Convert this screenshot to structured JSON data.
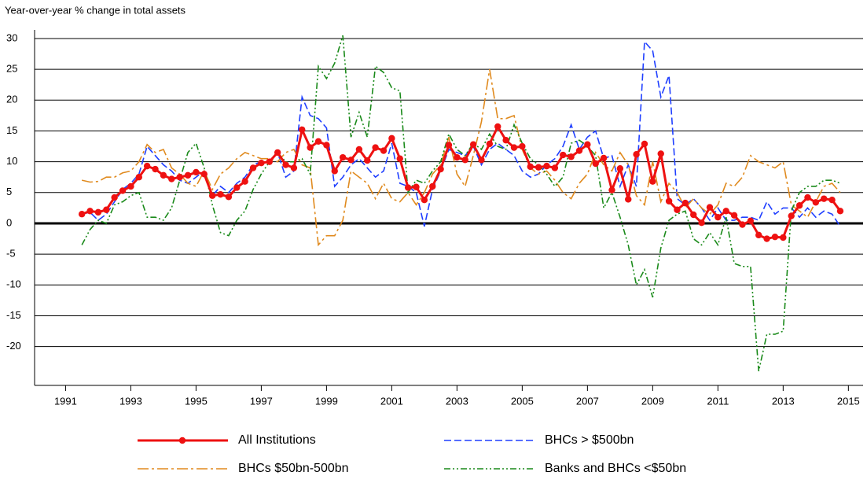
{
  "chart_data": {
    "type": "line",
    "title": "Year-over-year % change in total assets",
    "x": [
      1991.5,
      1991.75,
      1992,
      1992.25,
      1992.5,
      1992.75,
      1993,
      1993.25,
      1993.5,
      1993.75,
      1994,
      1994.25,
      1994.5,
      1994.75,
      1995,
      1995.25,
      1995.5,
      1995.75,
      1996,
      1996.25,
      1996.5,
      1996.75,
      1997,
      1997.25,
      1997.5,
      1997.75,
      1998,
      1998.25,
      1998.5,
      1998.75,
      1999,
      1999.25,
      1999.5,
      1999.75,
      2000,
      2000.25,
      2000.5,
      2000.75,
      2001,
      2001.25,
      2001.5,
      2001.75,
      2002,
      2002.25,
      2002.5,
      2002.75,
      2003,
      2003.25,
      2003.5,
      2003.75,
      2004,
      2004.25,
      2004.5,
      2004.75,
      2005,
      2005.25,
      2005.5,
      2005.75,
      2006,
      2006.25,
      2006.5,
      2006.75,
      2007,
      2007.25,
      2007.5,
      2007.75,
      2008,
      2008.25,
      2008.5,
      2008.75,
      2009,
      2009.25,
      2009.5,
      2009.75,
      2010,
      2010.25,
      2010.5,
      2010.75,
      2011,
      2011.25,
      2011.5,
      2011.75,
      2012,
      2012.25,
      2012.5,
      2012.75,
      2013,
      2013.25,
      2013.5,
      2013.75,
      2014,
      2014.25,
      2014.5,
      2014.75
    ],
    "series": [
      {
        "name": "All Institutions",
        "color": "#ee1111",
        "style": "solid",
        "marker": true,
        "values": [
          1.5,
          2.0,
          1.8,
          2.2,
          4.2,
          5.3,
          6.0,
          7.5,
          9.3,
          8.8,
          7.8,
          7.2,
          7.5,
          7.8,
          8.3,
          8.0,
          4.5,
          4.7,
          4.3,
          5.8,
          6.8,
          9.0,
          9.8,
          10.0,
          11.5,
          9.5,
          9.0,
          15.2,
          12.3,
          13.3,
          12.7,
          8.5,
          10.7,
          10.3,
          12.0,
          10.2,
          12.3,
          11.8,
          13.8,
          10.5,
          5.8,
          5.9,
          3.8,
          6.0,
          8.8,
          12.7,
          10.7,
          10.3,
          12.8,
          10.3,
          12.9,
          15.7,
          13.5,
          12.3,
          12.5,
          9.2,
          9.1,
          9.3,
          9.0,
          11.1,
          10.8,
          11.8,
          12.8,
          9.7,
          10.6,
          5.4,
          8.9,
          3.9,
          11.2,
          12.9,
          6.8,
          11.3,
          3.6,
          2.2,
          3.3,
          1.4,
          0.1,
          2.6,
          1.0,
          2.0,
          1.3,
          -0.2,
          0.4,
          -1.9,
          -2.5,
          -2.2,
          -2.3,
          1.2,
          2.9,
          4.2,
          3.4,
          4.0,
          3.8,
          2.0
        ]
      },
      {
        "name": "BHCs > $500bn",
        "color": "#1f3fff",
        "style": "dashed",
        "marker": false,
        "values": [
          1.5,
          1.8,
          0.5,
          1.5,
          3.5,
          5.5,
          6.5,
          8.0,
          12.5,
          11.0,
          9.5,
          8.5,
          7.0,
          6.5,
          7.5,
          8.5,
          4.5,
          6.0,
          5.0,
          6.5,
          7.5,
          9.5,
          10.0,
          10.0,
          11.5,
          7.5,
          8.5,
          20.5,
          17.5,
          17.0,
          15.5,
          6.0,
          7.5,
          9.5,
          10.5,
          9.0,
          7.5,
          8.5,
          13.0,
          6.5,
          6.0,
          5.0,
          -0.5,
          5.5,
          8.5,
          12.0,
          11.5,
          11.0,
          12.5,
          9.5,
          12.0,
          13.0,
          12.0,
          11.0,
          8.5,
          7.5,
          8.0,
          9.5,
          10.5,
          12.5,
          16.0,
          12.0,
          14.0,
          15.0,
          10.5,
          11.0,
          6.0,
          9.5,
          6.0,
          29.5,
          28.0,
          20.5,
          24.0,
          4.0,
          3.0,
          4.0,
          2.5,
          0.5,
          2.5,
          0.5,
          0.5,
          1.0,
          1.0,
          0.5,
          3.5,
          1.5,
          2.5,
          2.5,
          1.0,
          2.5,
          1.0,
          2.0,
          1.5,
          -0.5
        ]
      },
      {
        "name": "BHCs $50bn-500bn",
        "color": "#e08a1e",
        "style": "dashdot",
        "marker": false,
        "values": [
          7.0,
          6.7,
          6.8,
          7.5,
          7.5,
          8.2,
          8.5,
          10.0,
          12.8,
          11.5,
          12.0,
          9.0,
          8.0,
          6.5,
          6.0,
          8.5,
          5.5,
          8.0,
          9.0,
          10.5,
          11.5,
          11.0,
          10.5,
          10.5,
          10.0,
          11.5,
          12.0,
          9.5,
          9.0,
          -3.5,
          -2.0,
          -2.0,
          0.5,
          8.5,
          7.5,
          6.5,
          4.0,
          6.5,
          4.0,
          3.5,
          5.0,
          3.0,
          5.0,
          8.0,
          9.5,
          14.0,
          8.0,
          6.0,
          11.0,
          16.5,
          25.0,
          17.0,
          17.0,
          17.5,
          12.0,
          9.0,
          8.0,
          8.5,
          7.0,
          5.0,
          4.0,
          6.5,
          8.0,
          11.5,
          9.5,
          8.5,
          11.5,
          9.5,
          4.5,
          3.0,
          10.0,
          3.5,
          6.5,
          5.0,
          2.5,
          4.0,
          2.5,
          1.5,
          3.0,
          6.5,
          6.0,
          7.5,
          11.0,
          10.0,
          9.5,
          9.0,
          10.0,
          3.0,
          2.0,
          1.0,
          3.5,
          6.0,
          6.5,
          5.0
        ]
      },
      {
        "name": "Banks and BHCs <$50bn",
        "color": "#1a8a1a",
        "style": "dashdotdot",
        "marker": false,
        "values": [
          -3.5,
          -1.0,
          0.5,
          0.0,
          3.0,
          3.5,
          4.5,
          5.0,
          1.0,
          1.0,
          0.5,
          2.5,
          7.0,
          11.5,
          13.0,
          9.0,
          3.0,
          -1.5,
          -2.0,
          0.5,
          2.0,
          5.5,
          8.0,
          10.0,
          11.5,
          10.0,
          10.0,
          10.5,
          8.0,
          25.5,
          23.5,
          26.0,
          30.5,
          14.0,
          18.0,
          14.0,
          25.5,
          24.5,
          22.0,
          21.5,
          5.0,
          7.0,
          6.5,
          8.5,
          10.0,
          14.5,
          12.0,
          11.0,
          13.0,
          12.0,
          14.5,
          12.5,
          12.0,
          16.0,
          13.0,
          10.5,
          9.5,
          8.0,
          6.0,
          7.5,
          13.0,
          13.5,
          12.5,
          11.0,
          2.5,
          5.0,
          1.0,
          -3.5,
          -10.0,
          -7.5,
          -12.0,
          -4.0,
          0.5,
          1.5,
          2.0,
          -2.5,
          -3.5,
          -1.5,
          -3.5,
          1.0,
          -6.5,
          -7.0,
          -7.0,
          -24.0,
          -18.0,
          -18.0,
          -17.5,
          2.0,
          5.0,
          6.0,
          6.0,
          7.0,
          7.0,
          6.5
        ]
      }
    ],
    "xlim": [
      1990.05,
      2015.45
    ],
    "xticks": [
      1991,
      1993,
      1995,
      1997,
      1999,
      2001,
      2003,
      2005,
      2007,
      2009,
      2011,
      2013,
      2015
    ],
    "ylim": [
      -26.3,
      31.4
    ],
    "yticks": [
      30,
      25,
      20,
      15,
      10,
      5,
      0,
      -5,
      -10,
      -15,
      -20
    ],
    "grid": true
  }
}
